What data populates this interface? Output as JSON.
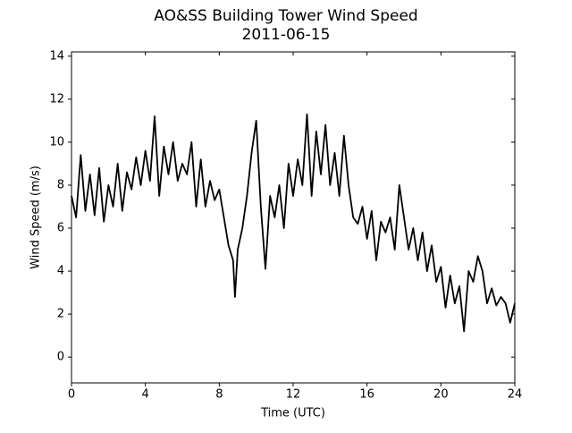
{
  "chart_data": {
    "type": "line",
    "title": "AO&SS Building Tower Wind Speed",
    "subtitle": "2011-06-15",
    "x_label": "Time (UTC)",
    "y_label": "Wind Speed (m/s)",
    "x": [
      0,
      0.25,
      0.5,
      0.75,
      1.0,
      1.25,
      1.5,
      1.75,
      2.0,
      2.25,
      2.5,
      2.75,
      3.0,
      3.25,
      3.5,
      3.75,
      4.0,
      4.25,
      4.5,
      4.75,
      5.0,
      5.25,
      5.5,
      5.75,
      6.0,
      6.25,
      6.5,
      6.75,
      7.0,
      7.25,
      7.5,
      7.75,
      8.0,
      8.25,
      8.5,
      8.75,
      8.85,
      9.0,
      9.25,
      9.5,
      9.75,
      10.0,
      10.25,
      10.5,
      10.75,
      11.0,
      11.25,
      11.5,
      11.75,
      12.0,
      12.25,
      12.5,
      12.75,
      13.0,
      13.25,
      13.5,
      13.75,
      14.0,
      14.25,
      14.5,
      14.75,
      15.0,
      15.25,
      15.5,
      15.75,
      16.0,
      16.25,
      16.5,
      16.75,
      17.0,
      17.25,
      17.5,
      17.75,
      18.0,
      18.25,
      18.5,
      18.75,
      19.0,
      19.25,
      19.5,
      19.75,
      20.0,
      20.25,
      20.5,
      20.75,
      21.0,
      21.25,
      21.5,
      21.75,
      22.0,
      22.25,
      22.5,
      22.75,
      23.0,
      23.25,
      23.5,
      23.75,
      24.0
    ],
    "series": [
      {
        "name": "Wind Speed",
        "color": "#000000",
        "values": [
          7.5,
          6.5,
          9.4,
          6.8,
          8.5,
          6.6,
          8.8,
          6.3,
          8.0,
          7.0,
          9.0,
          6.8,
          8.6,
          7.8,
          9.3,
          8.0,
          9.6,
          8.2,
          11.2,
          7.5,
          9.8,
          8.5,
          10.0,
          8.2,
          9.0,
          8.5,
          10.0,
          7.0,
          9.2,
          7.0,
          8.2,
          7.3,
          7.8,
          6.5,
          5.2,
          4.5,
          2.8,
          5.0,
          6.0,
          7.5,
          9.5,
          11.0,
          7.0,
          4.1,
          7.5,
          6.5,
          8.0,
          6.0,
          9.0,
          7.5,
          9.2,
          8.0,
          11.3,
          7.5,
          10.5,
          8.5,
          10.8,
          8.0,
          9.5,
          7.5,
          10.3,
          8.0,
          6.5,
          6.2,
          7.0,
          5.5,
          6.8,
          4.5,
          6.3,
          5.8,
          6.5,
          5.0,
          8.0,
          6.5,
          5.0,
          6.0,
          4.5,
          5.8,
          4.0,
          5.2,
          3.5,
          4.2,
          2.3,
          3.8,
          2.5,
          3.3,
          1.2,
          4.0,
          3.5,
          4.7,
          4.0,
          2.5,
          3.2,
          2.4,
          2.8,
          2.5,
          1.6,
          2.5
        ]
      }
    ],
    "xlim": [
      0,
      24
    ],
    "xticks": [
      0,
      4,
      8,
      12,
      16,
      20,
      24
    ],
    "ylim": [
      -1.2,
      14.2
    ],
    "yticks": [
      0,
      2,
      4,
      6,
      8,
      10,
      12,
      14
    ]
  }
}
